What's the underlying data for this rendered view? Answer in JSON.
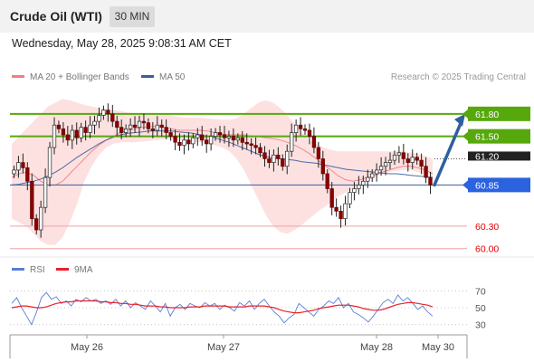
{
  "header": {
    "title": "Crude Oil (WTI)",
    "timeframe": "30 MIN"
  },
  "datetime": "Wednesday, May 28, 2025 9:08:31 AM CET",
  "legend": {
    "ma20": "MA 20 + Bollinger Bands",
    "ma20_color": "#f08080",
    "ma50": "MA 50",
    "ma50_color": "#3a5e9c",
    "research": "Research © 2025 Trading Central"
  },
  "rsi_legend": {
    "rsi": "RSI",
    "rsi_color": "#5a7ed6",
    "ma9": "9MA",
    "ma9_color": "#e8202a"
  },
  "chart_data": [
    {
      "type": "candlestick",
      "title": "Crude Oil (WTI)",
      "timeframe": "30 MIN",
      "x_ticks": [
        "May 26",
        "May 27",
        "May 28",
        "May 30"
      ],
      "ylim": [
        59.9,
        62.1
      ],
      "current_price": 60.85,
      "levels": [
        {
          "value": 61.8,
          "label": "61.80",
          "type": "resistance",
          "color": "#56a80c"
        },
        {
          "value": 61.5,
          "label": "61.50",
          "type": "resistance",
          "color": "#56a80c"
        },
        {
          "value": 61.2,
          "label": "61.20",
          "type": "pivot",
          "color": "#222222"
        },
        {
          "value": 60.85,
          "label": "60.85",
          "type": "current",
          "color": "#2a62e0"
        },
        {
          "value": 60.3,
          "label": "60.30",
          "type": "support",
          "color": "#e60000"
        },
        {
          "value": 60.0,
          "label": "60.00",
          "type": "support",
          "color": "#e60000"
        }
      ],
      "projection": {
        "from": 60.85,
        "to": 61.8,
        "color": "#2f5fa0"
      },
      "closes": [
        61.05,
        61.15,
        61.08,
        60.9,
        60.4,
        60.25,
        60.55,
        60.95,
        61.35,
        61.65,
        61.6,
        61.52,
        61.45,
        61.58,
        61.48,
        61.62,
        61.55,
        61.65,
        61.7,
        61.78,
        61.85,
        61.8,
        61.7,
        61.62,
        61.55,
        61.6,
        61.65,
        61.62,
        61.7,
        61.68,
        61.6,
        61.58,
        61.65,
        61.62,
        61.55,
        61.5,
        61.42,
        61.38,
        61.45,
        61.4,
        61.48,
        61.52,
        61.45,
        61.4,
        61.5,
        61.55,
        61.52,
        61.48,
        61.5,
        61.45,
        61.48,
        61.42,
        61.4,
        61.38,
        61.35,
        61.28,
        61.2,
        61.15,
        61.25,
        61.2,
        61.1,
        61.3,
        61.55,
        61.65,
        61.6,
        61.58,
        61.5,
        61.35,
        61.2,
        61.0,
        60.8,
        60.55,
        60.5,
        60.4,
        60.6,
        60.75,
        60.8,
        60.85,
        60.9,
        60.95,
        61.0,
        61.05,
        61.1,
        61.15,
        61.18,
        61.25,
        61.28,
        61.2,
        61.15,
        61.22,
        61.18,
        61.1,
        60.95,
        60.85
      ],
      "ma20": [
        60.95,
        61.0,
        61.02,
        60.98,
        60.9,
        60.85,
        60.85,
        60.9,
        61.0,
        61.1,
        61.2,
        61.3,
        61.38,
        61.45,
        61.5,
        61.55,
        61.58,
        61.6,
        61.62,
        61.63,
        61.63,
        61.62,
        61.6,
        61.58,
        61.58,
        61.58,
        61.58,
        61.57,
        61.55,
        61.53,
        61.52,
        61.52,
        61.52,
        61.5,
        61.5,
        61.48,
        61.47,
        61.45,
        61.42,
        61.38,
        61.33,
        61.27,
        61.2,
        61.12,
        61.05,
        60.97,
        60.92,
        60.9,
        60.92,
        60.95,
        60.98,
        61.02,
        61.05,
        61.08,
        61.1,
        61.1,
        61.08,
        61.05,
        61.0
      ],
      "ma50": [
        60.85,
        60.86,
        60.88,
        60.9,
        60.93,
        60.97,
        61.02,
        61.08,
        61.15,
        61.22,
        61.28,
        61.34,
        61.4,
        61.45,
        61.49,
        61.52,
        61.54,
        61.55,
        61.56,
        61.57,
        61.57,
        61.57,
        61.57,
        61.56,
        61.55,
        61.54,
        61.52,
        61.5,
        61.48,
        61.45,
        61.42,
        61.38,
        61.34,
        61.3,
        61.26,
        61.23,
        61.21,
        61.2,
        61.19,
        61.18,
        61.16,
        61.15,
        61.14,
        61.12,
        61.1,
        61.08,
        61.06,
        61.05,
        61.04,
        61.03,
        61.02,
        61.01,
        61.0,
        61.0,
        60.99,
        60.98,
        60.97,
        60.96,
        60.95
      ],
      "bb_upper": [
        61.4,
        61.5,
        61.6,
        61.7,
        61.8,
        61.9,
        61.95,
        62.0,
        61.98,
        61.95,
        61.92,
        61.9,
        61.88,
        61.86,
        61.85,
        61.84,
        61.82,
        61.8,
        61.8,
        61.8,
        61.8,
        61.8,
        61.78,
        61.76,
        61.75,
        61.75,
        61.75,
        61.74,
        61.73,
        61.72,
        61.72,
        61.74,
        61.8,
        61.88,
        61.95,
        61.98,
        61.95,
        61.88,
        61.78,
        61.66,
        61.55,
        61.45,
        61.4,
        61.35,
        61.32,
        61.3,
        61.3,
        61.3,
        61.3,
        61.3,
        61.3,
        61.3,
        61.3,
        61.3,
        61.3,
        61.28,
        61.26,
        61.24,
        61.2
      ],
      "bb_lower": [
        60.4,
        60.35,
        60.3,
        60.2,
        60.1,
        60.05,
        60.05,
        60.15,
        60.35,
        60.6,
        60.9,
        61.1,
        61.25,
        61.35,
        61.4,
        61.42,
        61.42,
        61.42,
        61.43,
        61.44,
        61.45,
        61.46,
        61.46,
        61.45,
        61.44,
        61.43,
        61.42,
        61.4,
        61.38,
        61.35,
        61.3,
        61.2,
        61.05,
        60.85,
        60.65,
        60.45,
        60.3,
        60.22,
        60.2,
        60.25,
        60.32,
        60.4,
        60.48,
        60.55,
        60.62,
        60.7,
        60.75,
        60.8,
        60.85,
        60.9,
        60.95,
        61.0,
        61.02,
        61.04,
        61.05,
        61.05,
        61.02,
        60.98,
        60.95
      ]
    },
    {
      "type": "line",
      "title": "RSI",
      "y_ticks": [
        70,
        50,
        30
      ],
      "ylim": [
        20,
        80
      ],
      "series": [
        {
          "name": "RSI",
          "color": "#5a7ed6",
          "values": [
            55,
            62,
            50,
            40,
            30,
            45,
            62,
            68,
            60,
            63,
            55,
            58,
            52,
            60,
            57,
            62,
            58,
            60,
            55,
            58,
            54,
            60,
            52,
            58,
            50,
            56,
            52,
            48,
            58,
            52,
            45,
            55,
            40,
            50,
            54,
            48,
            55,
            52,
            50,
            56,
            52,
            55,
            48,
            53,
            50,
            46,
            56,
            52,
            58,
            48,
            55,
            60,
            52,
            45,
            40,
            32,
            38,
            42,
            55,
            50,
            45,
            40,
            48,
            52,
            58,
            55,
            62,
            50,
            55,
            45,
            42,
            38,
            33,
            40,
            48,
            56,
            60,
            55,
            65,
            58,
            62,
            55,
            48,
            52,
            45,
            40
          ]
        },
        {
          "name": "9MA",
          "color": "#e8202a",
          "values": [
            50,
            51,
            52,
            52,
            51,
            50,
            50,
            51,
            53,
            55,
            56,
            57,
            57,
            58,
            58,
            58,
            58,
            58,
            57,
            57,
            56,
            56,
            55,
            55,
            54,
            54,
            53,
            52,
            52,
            52,
            51,
            51,
            50,
            50,
            50,
            50,
            51,
            51,
            51,
            52,
            52,
            52,
            52,
            52,
            51,
            51,
            51,
            51,
            52,
            52,
            52,
            52,
            51,
            50,
            48,
            46,
            45,
            44,
            44,
            45,
            46,
            47,
            49,
            50,
            51,
            52,
            53,
            53,
            53,
            52,
            51,
            49,
            48,
            47,
            47,
            48,
            50,
            52,
            54,
            55,
            56,
            56,
            55,
            54,
            53,
            51
          ]
        }
      ]
    }
  ]
}
